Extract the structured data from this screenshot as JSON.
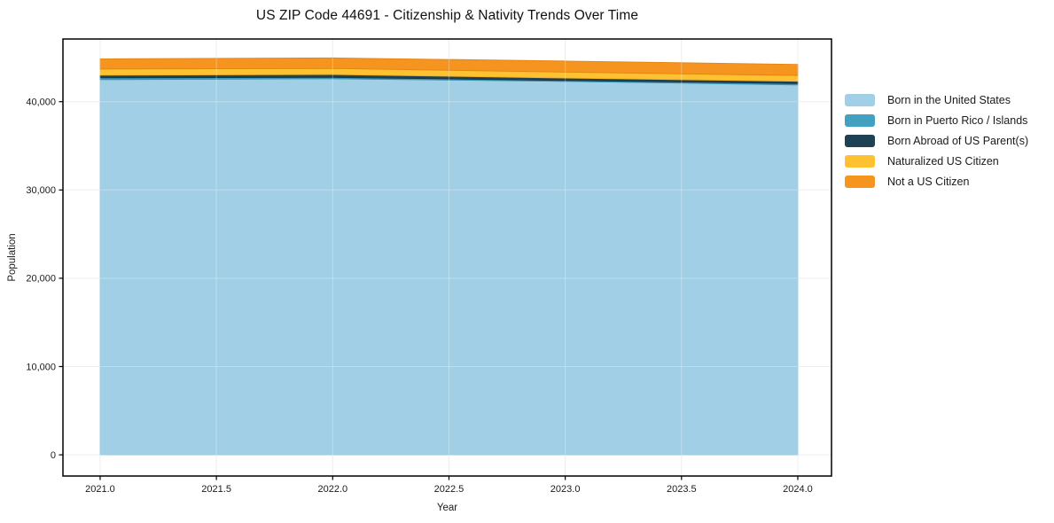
{
  "chart_data": {
    "type": "area",
    "stacked": true,
    "title": "US ZIP Code 44691 - Citizenship & Nativity Trends Over Time",
    "xlabel": "Year",
    "ylabel": "Population",
    "x": [
      2021,
      2022,
      2023,
      2024
    ],
    "series": [
      {
        "name": "Born in the United States",
        "color": "#a1d0e6",
        "edge": "#7ab6d6",
        "values": [
          42500,
          42600,
          42300,
          41900
        ]
      },
      {
        "name": "Born in Puerto Rico / Islands",
        "color": "#42a1c1",
        "edge": "#3a92b0",
        "values": [
          200,
          150,
          100,
          150
        ]
      },
      {
        "name": "Born Abroad of US Parent(s)",
        "color": "#1f4154",
        "edge": "#183546",
        "values": [
          300,
          330,
          280,
          260
        ]
      },
      {
        "name": "Naturalized US Citizen",
        "color": "#fdc132",
        "edge": "#f0b01e",
        "values": [
          700,
          680,
          670,
          660
        ]
      },
      {
        "name": "Not a US Citizen",
        "color": "#f5941f",
        "edge": "#e68310",
        "values": [
          1150,
          1200,
          1250,
          1250
        ]
      }
    ],
    "x_ticks": {
      "values": [
        2021,
        2021.5,
        2022,
        2022.5,
        2023,
        2023.5,
        2024
      ],
      "labels": [
        "2021.0",
        "2021.5",
        "2022.0",
        "2022.5",
        "2023.0",
        "2023.5",
        "2024.0"
      ]
    },
    "y_ticks": {
      "values": [
        0,
        10000,
        20000,
        30000,
        40000
      ],
      "labels": [
        "0",
        "10,000",
        "20,000",
        "30,000",
        "40,000"
      ]
    },
    "xlim": [
      2020.84,
      2024.145
    ],
    "ylim": [
      -2400,
      47100
    ],
    "grid": true,
    "grid_color": "#e8e8e8",
    "legend_position": "right-outside"
  }
}
